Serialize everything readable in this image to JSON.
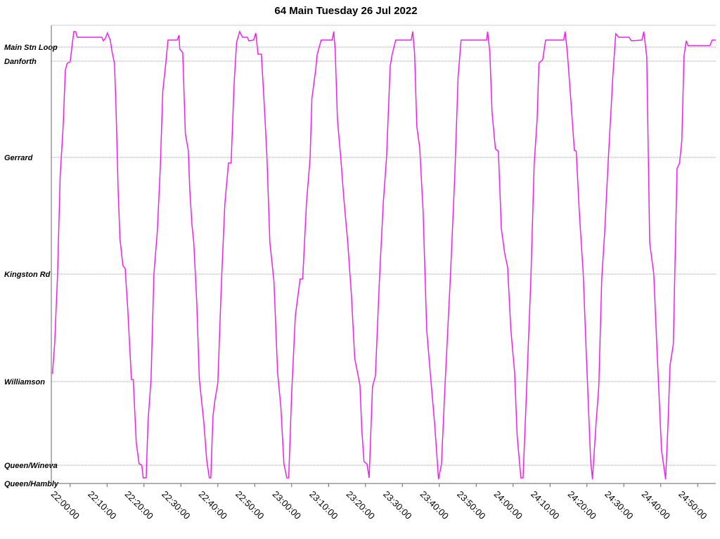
{
  "chart_data": {
    "type": "line",
    "title": "64 Main Tuesday 26 Jul 2022",
    "x": [
      1315.2,
      1315.8,
      1316.6,
      1317.3,
      1318.1,
      1318.7,
      1319.2,
      1320.0,
      1320.4,
      1321.0,
      1321.5,
      1321.9,
      1328.6,
      1329.0,
      1329.5,
      1330.1,
      1330.9,
      1331.4,
      1332.0,
      1332.4,
      1333.0,
      1333.5,
      1334.3,
      1334.9,
      1335.6,
      1336.6,
      1337.1,
      1337.9,
      1338.7,
      1339.4,
      1339.8,
      1340.6,
      1341.1,
      1341.9,
      1342.7,
      1343.6,
      1344.4,
      1345.1,
      1345.9,
      1346.5,
      1349.0,
      1349.5,
      1349.7,
      1350.5,
      1351.2,
      1352.0,
      1352.4,
      1353.0,
      1353.5,
      1354.3,
      1355.0,
      1356.2,
      1357.0,
      1357.7,
      1358.1,
      1358.7,
      1359.2,
      1360.0,
      1361.0,
      1361.9,
      1362.9,
      1363.6,
      1364.4,
      1365.1,
      1365.9,
      1366.7,
      1368.0,
      1368.4,
      1369.7,
      1370.3,
      1370.9,
      1371.8,
      1372.6,
      1373.3,
      1374.1,
      1375.2,
      1376.2,
      1377.1,
      1377.9,
      1378.7,
      1379.2,
      1380.0,
      1381.0,
      1382.3,
      1383.0,
      1384.0,
      1385.0,
      1385.5,
      1386.5,
      1386.9,
      1388.0,
      1391.0,
      1391.4,
      1391.8,
      1392.4,
      1393.3,
      1394.1,
      1395.2,
      1396.2,
      1397.1,
      1398.5,
      1399.0,
      1399.6,
      1400.4,
      1401.0,
      1401.9,
      1402.7,
      1403.8,
      1404.8,
      1405.7,
      1406.7,
      1407.2,
      1408.2,
      1412.4,
      1412.8,
      1413.3,
      1413.9,
      1414.7,
      1415.6,
      1416.6,
      1417.7,
      1418.7,
      1419.8,
      1420.6,
      1421.5,
      1423.0,
      1424.2,
      1425.1,
      1425.9,
      1432.8,
      1433.1,
      1433.7,
      1434.3,
      1435.2,
      1436.0,
      1436.8,
      1437.7,
      1438.5,
      1439.4,
      1440.4,
      1441.1,
      1442.1,
      1442.7,
      1443.6,
      1444.8,
      1445.7,
      1446.5,
      1447.0,
      1448.0,
      1448.8,
      1453.7,
      1454.1,
      1454.7,
      1455.6,
      1456.6,
      1457.1,
      1457.9,
      1459.0,
      1459.8,
      1461.0,
      1461.5,
      1462.5,
      1463.2,
      1464.0,
      1464.8,
      1465.7,
      1467.0,
      1467.8,
      1468.6,
      1471.4,
      1472.0,
      1474.9,
      1475.4,
      1476.2,
      1477.0,
      1478.1,
      1479.0,
      1480.2,
      1481.3,
      1481.9,
      1482.5,
      1483.4,
      1484.4,
      1485.1,
      1485.7,
      1486.3,
      1486.9,
      1487.4,
      1493.3,
      1493.9,
      1494.9
    ],
    "series": [
      {
        "color": "#ee22ee",
        "values": [
          1.56,
          1.98,
          2.98,
          4.38,
          5.08,
          5.88,
          5.98,
          6.0,
          6.18,
          6.43,
          6.43,
          6.35,
          6.35,
          6.3,
          6.33,
          6.41,
          6.3,
          6.13,
          5.98,
          5.38,
          4.18,
          3.48,
          3.1,
          3.06,
          2.48,
          1.48,
          1.48,
          0.58,
          0.28,
          0.26,
          0.08,
          0.08,
          0.88,
          1.48,
          2.98,
          3.58,
          4.48,
          5.58,
          5.98,
          6.31,
          6.31,
          6.38,
          6.18,
          6.13,
          4.98,
          4.74,
          4.18,
          3.68,
          3.43,
          2.58,
          1.48,
          0.88,
          0.33,
          0.08,
          0.08,
          0.96,
          1.18,
          1.43,
          2.88,
          3.98,
          4.56,
          4.56,
          5.68,
          6.28,
          6.43,
          6.35,
          6.35,
          6.3,
          6.31,
          6.41,
          6.11,
          6.11,
          5.38,
          4.66,
          3.43,
          2.88,
          1.58,
          1.08,
          0.28,
          0.08,
          0.08,
          1.28,
          2.38,
          2.91,
          2.91,
          3.98,
          4.63,
          5.48,
          5.88,
          6.1,
          6.31,
          6.31,
          6.43,
          6.18,
          5.18,
          4.64,
          4.08,
          3.43,
          2.68,
          1.78,
          1.4,
          0.78,
          0.31,
          0.28,
          0.08,
          1.38,
          1.53,
          2.91,
          3.98,
          4.63,
          5.93,
          6.1,
          6.31,
          6.31,
          6.43,
          6.13,
          5.08,
          4.78,
          3.88,
          2.18,
          1.48,
          0.88,
          0.06,
          0.28,
          1.33,
          2.93,
          4.38,
          5.78,
          6.31,
          6.31,
          6.43,
          6.13,
          5.28,
          4.76,
          4.73,
          3.63,
          3.28,
          3.08,
          2.18,
          1.58,
          0.68,
          0.08,
          0.08,
          1.28,
          2.91,
          4.54,
          5.18,
          5.98,
          6.03,
          6.31,
          6.31,
          6.43,
          6.13,
          5.48,
          4.74,
          4.73,
          3.88,
          2.98,
          1.88,
          0.33,
          0.06,
          0.88,
          1.38,
          2.91,
          3.58,
          4.53,
          5.78,
          6.4,
          6.35,
          6.35,
          6.3,
          6.31,
          6.43,
          6.08,
          3.43,
          2.98,
          1.88,
          0.48,
          0.06,
          0.78,
          1.68,
          1.98,
          4.48,
          4.56,
          4.88,
          6.08,
          6.3,
          6.23,
          6.23,
          6.31,
          6.31
        ]
      }
    ],
    "xlim": [
      1314.9,
      1494.9
    ],
    "xticks": [
      {
        "value": 1320,
        "label": "22:00:00"
      },
      {
        "value": 1330,
        "label": "22:10:00"
      },
      {
        "value": 1340,
        "label": "22:20:00"
      },
      {
        "value": 1350,
        "label": "22:30:00"
      },
      {
        "value": 1360,
        "label": "22:40:00"
      },
      {
        "value": 1370,
        "label": "22:50:00"
      },
      {
        "value": 1380,
        "label": "23:00:00"
      },
      {
        "value": 1390,
        "label": "23:10:00"
      },
      {
        "value": 1400,
        "label": "23:20:00"
      },
      {
        "value": 1410,
        "label": "23:30:00"
      },
      {
        "value": 1420,
        "label": "23:40:00"
      },
      {
        "value": 1430,
        "label": "23:50:00"
      },
      {
        "value": 1440,
        "label": "24:00:00"
      },
      {
        "value": 1450,
        "label": "24:10:00"
      },
      {
        "value": 1460,
        "label": "24:20:00"
      },
      {
        "value": 1470,
        "label": "24:30:00"
      },
      {
        "value": 1480,
        "label": "24:40:00"
      },
      {
        "value": 1490,
        "label": "24:50:00"
      }
    ],
    "ylim": [
      0,
      6.52
    ],
    "yticks": [
      {
        "value": 0,
        "label": "Queen/Hambly"
      },
      {
        "value": 0.26,
        "label": "Queen/Wineva"
      },
      {
        "value": 1.45,
        "label": "Williamson"
      },
      {
        "value": 2.98,
        "label": "Kingston Rd"
      },
      {
        "value": 4.64,
        "label": "Gerrard"
      },
      {
        "value": 6.01,
        "label": "Danforth"
      },
      {
        "value": 6.21,
        "label": "Main Stn Loop"
      }
    ],
    "grid": true
  }
}
